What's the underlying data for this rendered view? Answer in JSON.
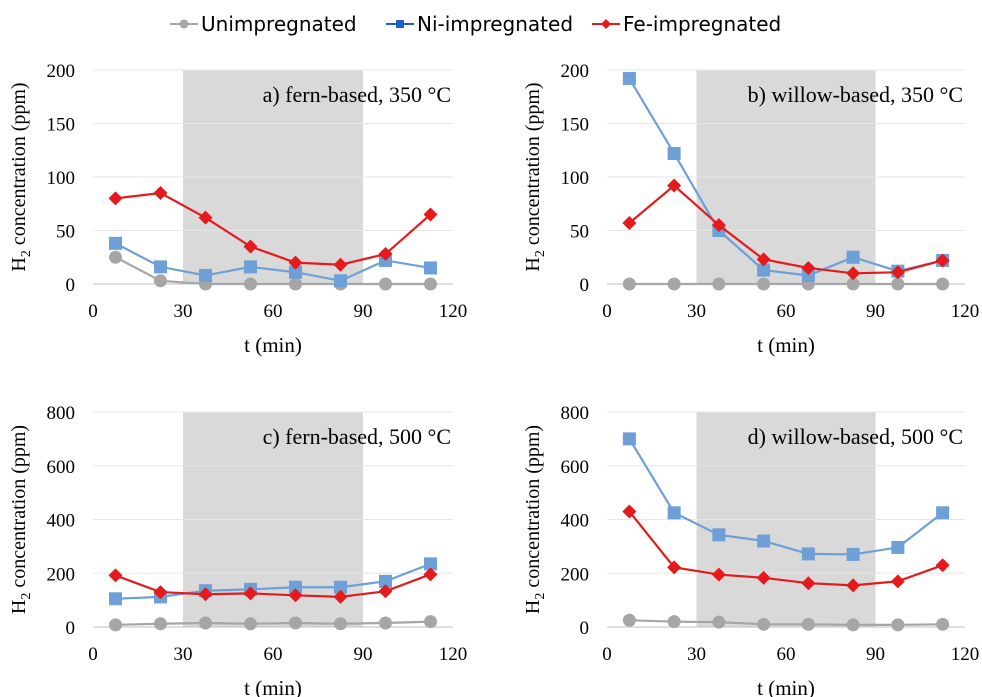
{
  "legend": [
    {
      "name": "Unimpregnated",
      "color": "#a6a6a6",
      "marker": "circle"
    },
    {
      "name": "Ni-impregnated",
      "color": "#1f5fbf",
      "marker": "square"
    },
    {
      "name": "Fe-impregnated",
      "color": "#e41a1c",
      "marker": "diamond"
    }
  ],
  "chart_data": [
    {
      "type": "line",
      "title": "a) fern-based, 350 °C",
      "xlabel": "t (min)",
      "ylabel_main": "H",
      "ylabel_sub": "2",
      "ylabel_rest": " concentration (ppm)",
      "xlim": [
        0,
        120
      ],
      "ylim": [
        0,
        200
      ],
      "xticks": [
        0,
        30,
        60,
        90,
        120
      ],
      "yticks": [
        0,
        50,
        100,
        150,
        200
      ],
      "shaded_x": [
        30,
        90
      ],
      "grid": true,
      "x": [
        7.5,
        22.5,
        37.5,
        52.5,
        67.5,
        82.5,
        97.5,
        112.5
      ],
      "series": [
        {
          "name": "Unimpregnated",
          "values": [
            25,
            3,
            0,
            0,
            0,
            0,
            0,
            0
          ]
        },
        {
          "name": "Ni-impregnated",
          "values": [
            38,
            16,
            8,
            16,
            11,
            3,
            22,
            15
          ]
        },
        {
          "name": "Fe-impregnated",
          "values": [
            80,
            85,
            62,
            35,
            20,
            18,
            28,
            65
          ]
        }
      ]
    },
    {
      "type": "line",
      "title": "b) willow-based, 350 °C",
      "xlabel": "t (min)",
      "ylabel_main": "H",
      "ylabel_sub": "2",
      "ylabel_rest": " concentration (ppm)",
      "xlim": [
        0,
        120
      ],
      "ylim": [
        0,
        200
      ],
      "xticks": [
        0,
        30,
        60,
        90,
        120
      ],
      "yticks": [
        0,
        50,
        100,
        150,
        200
      ],
      "shaded_x": [
        30,
        90
      ],
      "grid": true,
      "x": [
        7.5,
        22.5,
        37.5,
        52.5,
        67.5,
        82.5,
        97.5,
        112.5
      ],
      "series": [
        {
          "name": "Unimpregnated",
          "values": [
            0,
            0,
            0,
            0,
            0,
            0,
            0,
            0
          ]
        },
        {
          "name": "Ni-impregnated",
          "values": [
            192,
            122,
            50,
            13,
            8,
            25,
            12,
            22
          ]
        },
        {
          "name": "Fe-impregnated",
          "values": [
            57,
            92,
            55,
            23,
            15,
            10,
            11,
            22
          ]
        }
      ]
    },
    {
      "type": "line",
      "title": "c) fern-based, 500 °C",
      "xlabel": "t (min)",
      "ylabel_main": "H",
      "ylabel_sub": "2",
      "ylabel_rest": " concentration (ppm)",
      "xlim": [
        0,
        120
      ],
      "ylim": [
        0,
        800
      ],
      "xticks": [
        0,
        30,
        60,
        90,
        120
      ],
      "yticks": [
        0,
        200,
        400,
        600,
        800
      ],
      "shaded_x": [
        30,
        90
      ],
      "grid": true,
      "x": [
        7.5,
        22.5,
        37.5,
        52.5,
        67.5,
        82.5,
        97.5,
        112.5
      ],
      "series": [
        {
          "name": "Unimpregnated",
          "values": [
            8,
            12,
            15,
            12,
            15,
            12,
            15,
            20
          ]
        },
        {
          "name": "Ni-impregnated",
          "values": [
            105,
            112,
            135,
            140,
            148,
            148,
            170,
            235
          ]
        },
        {
          "name": "Fe-impregnated",
          "values": [
            192,
            130,
            122,
            125,
            118,
            112,
            133,
            196
          ]
        }
      ]
    },
    {
      "type": "line",
      "title": "d) willow-based, 500 °C",
      "xlabel": "t (min)",
      "ylabel_main": "H",
      "ylabel_sub": "2",
      "ylabel_rest": " concentration (ppm)",
      "xlim": [
        0,
        120
      ],
      "ylim": [
        0,
        800
      ],
      "xticks": [
        0,
        30,
        60,
        90,
        120
      ],
      "yticks": [
        0,
        200,
        400,
        600,
        800
      ],
      "shaded_x": [
        30,
        90
      ],
      "grid": true,
      "x": [
        7.5,
        22.5,
        37.5,
        52.5,
        67.5,
        82.5,
        97.5,
        112.5
      ],
      "series": [
        {
          "name": "Unimpregnated",
          "values": [
            25,
            20,
            18,
            10,
            10,
            8,
            8,
            10
          ]
        },
        {
          "name": "Ni-impregnated",
          "values": [
            700,
            425,
            343,
            320,
            272,
            270,
            296,
            425
          ]
        },
        {
          "name": "Fe-impregnated",
          "values": [
            430,
            222,
            195,
            183,
            163,
            155,
            170,
            230
          ]
        }
      ]
    }
  ]
}
